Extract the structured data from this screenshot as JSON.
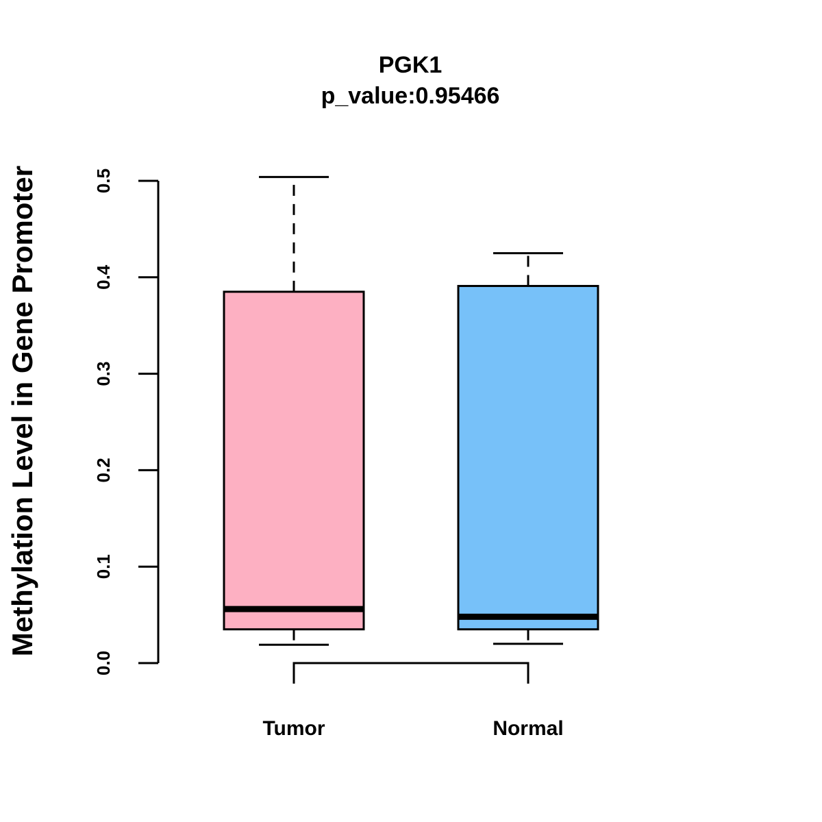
{
  "chart_data": {
    "type": "box",
    "title": "PGK1",
    "subtitle": "p_value:0.95466",
    "xlabel": "",
    "ylabel": "Methylation Level in Gene Promoter",
    "ylim": [
      0,
      0.5
    ],
    "yticks": [
      0.0,
      0.1,
      0.2,
      0.3,
      0.4,
      0.5
    ],
    "ytick_labels": [
      "0.0",
      "0.1",
      "0.2",
      "0.3",
      "0.4",
      "0.5"
    ],
    "grid": false,
    "categories": [
      "Tumor",
      "Normal"
    ],
    "boxes": [
      {
        "name": "Tumor",
        "whisker_low": 0.019,
        "q1": 0.035,
        "median": 0.056,
        "q3": 0.385,
        "whisker_high": 0.504,
        "color": "#fdb0c2"
      },
      {
        "name": "Normal",
        "whisker_low": 0.02,
        "q1": 0.035,
        "median": 0.048,
        "q3": 0.391,
        "whisker_high": 0.425,
        "color": "#77c1f9"
      }
    ],
    "comparison_bracket": {
      "from": "Tumor",
      "to": "Normal",
      "label": ""
    }
  }
}
